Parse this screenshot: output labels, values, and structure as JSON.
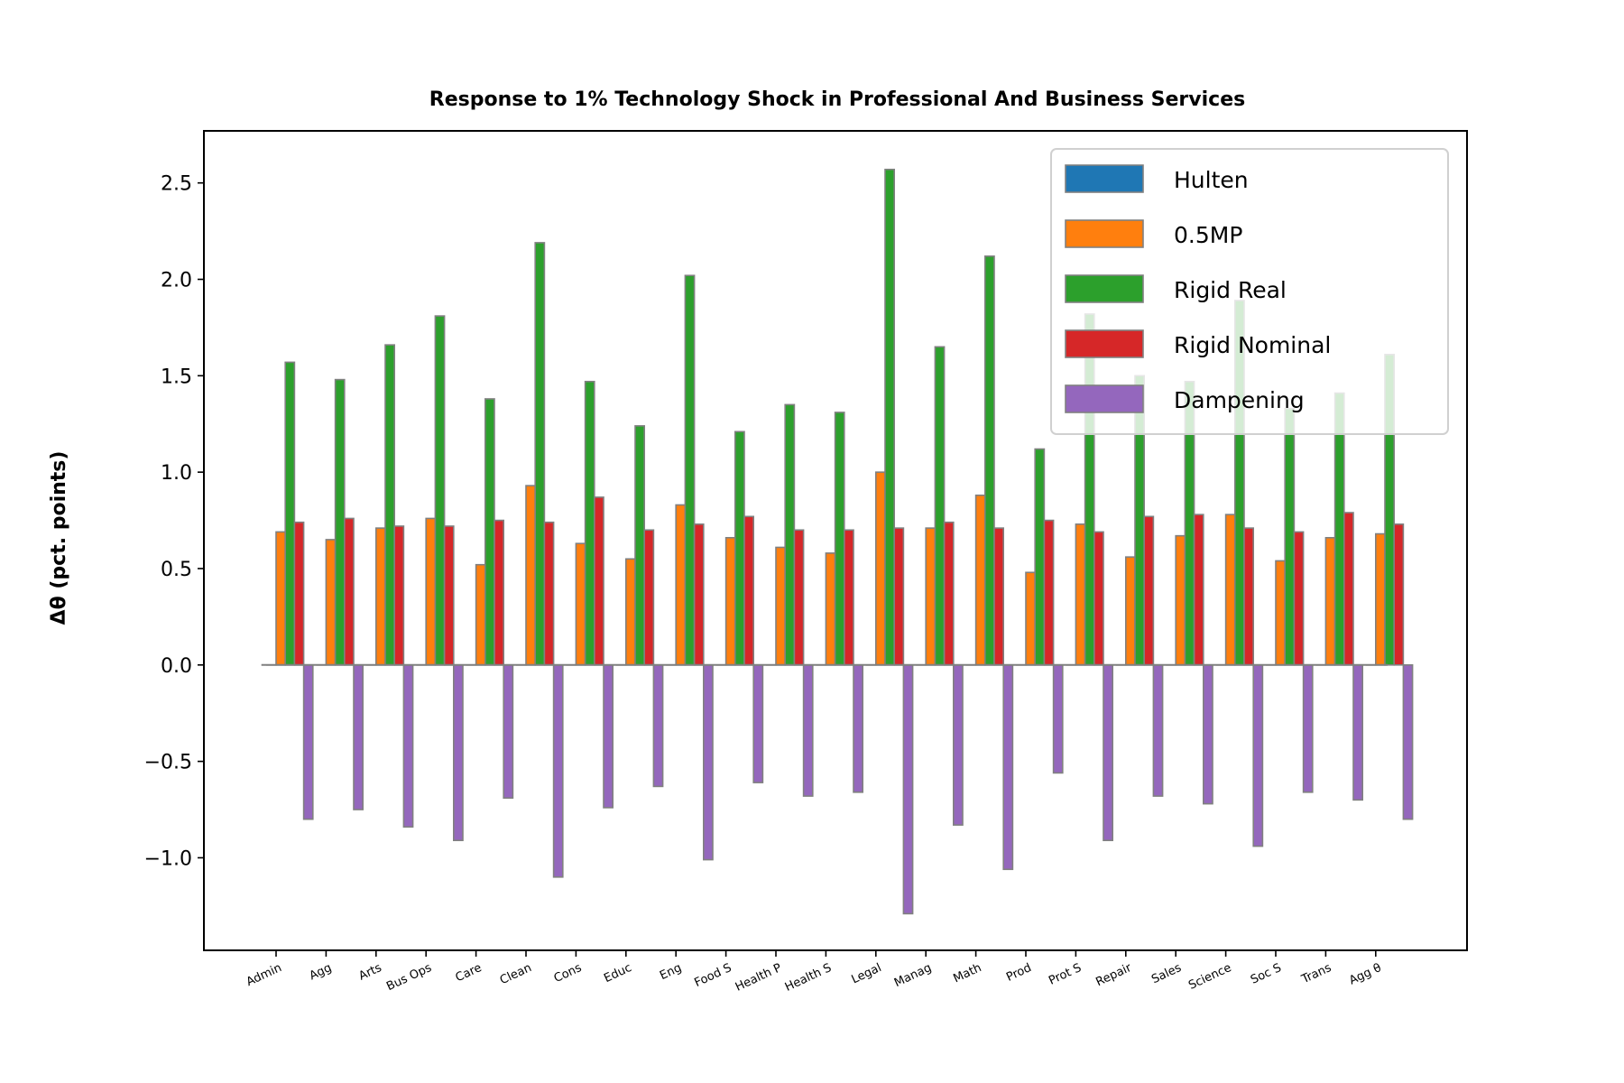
{
  "chart_data": {
    "type": "bar",
    "title": "Response to 1% Technology Shock in Professional And Business Services",
    "xlabel": "",
    "ylabel": "Δθ  (pct. points)",
    "ylim": [
      -1.48,
      2.77
    ],
    "yticks": [
      -1.0,
      -0.5,
      0.0,
      0.5,
      1.0,
      1.5,
      2.0,
      2.5
    ],
    "ytick_labels": [
      "−1.0",
      "−0.5",
      "0.0",
      "0.5",
      "1.0",
      "1.5",
      "2.0",
      "2.5"
    ],
    "grid": false,
    "legend_position": "top-right",
    "bar_edge_color": "#808080",
    "categories": [
      "Admin",
      "Agg",
      "Arts",
      "Bus Ops",
      "Care",
      "Clean",
      "Cons",
      "Educ",
      "Eng",
      "Food S",
      "Health P",
      "Health S",
      "Legal",
      "Manag",
      "Math",
      "Prod",
      "Prot S",
      "Repair",
      "Sales",
      "Science",
      "Soc S",
      "Trans",
      "Agg θ"
    ],
    "series": [
      {
        "name": "Hulten",
        "color": "#1f77b4",
        "values": [
          0,
          0,
          0,
          0,
          0,
          0,
          0,
          0,
          0,
          0,
          0,
          0,
          0,
          0,
          0,
          0,
          0,
          0,
          0,
          0,
          0,
          0,
          0
        ]
      },
      {
        "name": "0.5MP",
        "color": "#ff7f0e",
        "values": [
          0.69,
          0.65,
          0.71,
          0.76,
          0.52,
          0.93,
          0.63,
          0.55,
          0.83,
          0.66,
          0.61,
          0.58,
          1.0,
          0.71,
          0.88,
          0.48,
          0.73,
          0.56,
          0.67,
          0.78,
          0.54,
          0.66,
          0.68
        ]
      },
      {
        "name": "Rigid Real",
        "color": "#2ca02c",
        "values": [
          1.57,
          1.48,
          1.66,
          1.81,
          1.38,
          2.19,
          1.47,
          1.24,
          2.02,
          1.21,
          1.35,
          1.31,
          2.57,
          1.65,
          2.12,
          1.12,
          1.82,
          1.5,
          1.47,
          1.89,
          1.33,
          1.41,
          1.61
        ]
      },
      {
        "name": "Rigid Nominal",
        "color": "#d62728",
        "values": [
          0.74,
          0.76,
          0.72,
          0.72,
          0.75,
          0.74,
          0.87,
          0.7,
          0.73,
          0.77,
          0.7,
          0.7,
          0.71,
          0.74,
          0.71,
          0.75,
          0.69,
          0.77,
          0.78,
          0.71,
          0.69,
          0.79,
          0.73
        ]
      },
      {
        "name": "Dampening",
        "color": "#9467bd",
        "values": [
          -0.8,
          -0.75,
          -0.84,
          -0.91,
          -0.69,
          -1.1,
          -0.74,
          -0.63,
          -1.01,
          -0.61,
          -0.68,
          -0.66,
          -1.29,
          -0.83,
          -1.06,
          -0.56,
          -0.91,
          -0.68,
          -0.72,
          -0.94,
          -0.66,
          -0.7,
          -0.8
        ]
      }
    ]
  }
}
